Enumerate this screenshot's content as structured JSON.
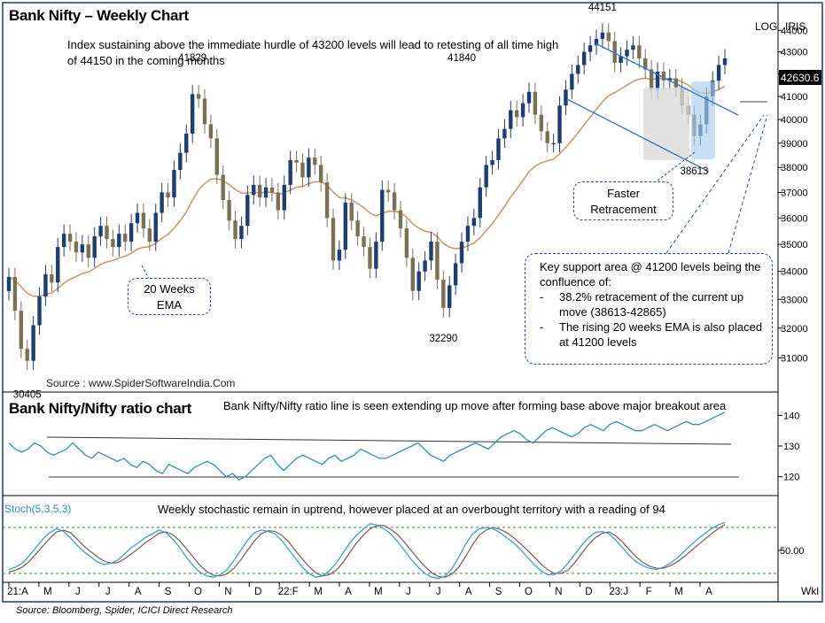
{
  "main_panel": {
    "title": "Bank Nifty – Weekly Chart",
    "scale_labels": [
      "LOG",
      "IRIS"
    ],
    "commentary": "Index sustaining above the immediate hurdle of 43200 levels will lead to retesting of all time high of 44150 in the coming months",
    "watermark": "Source : www.SpiderSoftwareIndia.Com",
    "last_price": "42630.6",
    "ema_callout": [
      "20 Weeks",
      "EMA"
    ],
    "faster_callout": [
      "Faster",
      "Retracement"
    ],
    "support_box": {
      "heading": "Key support area @ 41200 levels being the confluence of:",
      "bullets": [
        "38.2% retracement of the current up move (38613-42865)",
        "The rising 20 weeks EMA is also placed at 41200 levels"
      ]
    },
    "y_ticks": [
      "44000",
      "43000",
      "42000",
      "41000",
      "40000",
      "39000",
      "38000",
      "37000",
      "36000",
      "35000",
      "34000",
      "33000",
      "32000",
      "31000"
    ]
  },
  "ratio_panel": {
    "title": "Bank Nifty/Nifty ratio chart",
    "commentary": "Bank Nifty/Nifty ratio line is seen extending up move after forming base above major breakout area",
    "y_ticks": [
      "140",
      "130",
      "120"
    ]
  },
  "stoch_panel": {
    "label": "Stoch(5,3,5,3)",
    "commentary": "Weekly stochastic remain in uptrend, however placed at an overbought territory with a reading of 94",
    "y_ticks": [
      "50.00"
    ]
  },
  "x_axis": {
    "labels": [
      "21:A",
      "M",
      "J",
      "J",
      "A",
      "S",
      "O",
      "N",
      "D",
      "22:F",
      "M",
      "A",
      "M",
      "J",
      "J",
      "A",
      "S",
      "O",
      "N",
      "D",
      "23:J",
      "F",
      "M",
      "A"
    ],
    "interval": "Wkl"
  },
  "footer": "Source: Bloomberg, Spider, ICICI Direct Research",
  "colors": {
    "bull": "#1f3d6e",
    "bear": "#7a7055",
    "ema": "#c8946a",
    "ratio": "#2f8fb0",
    "stoch_k": "#3aa0c8",
    "stoch_d": "#7a5a4a",
    "channel": "#3a78c8",
    "border": "#1a3a7a"
  },
  "chart_data": [
    {
      "type": "candlestick",
      "title": "Bank Nifty – Weekly Chart",
      "scale": "log",
      "ylim": [
        30400,
        44600
      ],
      "x_range": [
        "2021-04",
        "2023-04"
      ],
      "annotations": [
        {
          "label": "30405",
          "value": 30405
        },
        {
          "label": "41829",
          "value": 41829
        },
        {
          "label": "32290",
          "value": 32290
        },
        {
          "label": "41840",
          "value": 41840
        },
        {
          "label": "44151",
          "value": 44151
        },
        {
          "label": "38613",
          "value": 38613
        }
      ],
      "last": 42630.6,
      "closes": [
        33800,
        32600,
        31300,
        30900,
        32100,
        33100,
        33900,
        33600,
        34900,
        35400,
        35100,
        34700,
        35000,
        34500,
        35300,
        35700,
        35200,
        34900,
        35400,
        35100,
        35800,
        36200,
        35600,
        35100,
        36200,
        37000,
        36800,
        37900,
        38600,
        39400,
        41100,
        40900,
        39800,
        39200,
        37700,
        36700,
        35900,
        35200,
        35700,
        36900,
        37300,
        36800,
        37200,
        37000,
        36300,
        37300,
        38300,
        38200,
        37600,
        38400,
        38100,
        37400,
        36000,
        34400,
        34800,
        36600,
        35900,
        35300,
        34900,
        34100,
        35100,
        37100,
        37000,
        36300,
        35600,
        34500,
        33300,
        34000,
        34400,
        35100,
        33700,
        32700,
        33500,
        34300,
        35100,
        35700,
        36000,
        37200,
        38100,
        38300,
        39200,
        39600,
        40400,
        40100,
        40700,
        41200,
        40200,
        39500,
        39000,
        39000,
        40600,
        41300,
        42000,
        42400,
        43000,
        43300,
        43600,
        43900,
        43500,
        42500,
        42800,
        43100,
        43300,
        42700,
        42200,
        41300,
        42100,
        41700,
        41800,
        41400,
        40600,
        40200,
        39300,
        39800,
        41000,
        41700,
        42400,
        42700
      ]
    },
    {
      "type": "line",
      "title": "Bank Nifty/Nifty ratio chart",
      "ylim": [
        115,
        145
      ],
      "y_ticks": [
        120,
        130,
        140
      ],
      "series": [
        {
          "name": "",
          "values": [
            131,
            129,
            128,
            129,
            131,
            130,
            128,
            127,
            128,
            129,
            131,
            129,
            127,
            126,
            128,
            127,
            126,
            125,
            126,
            124,
            123,
            125,
            124,
            122,
            121,
            124,
            123,
            122,
            121,
            123,
            124,
            125,
            124,
            122,
            120,
            121,
            119,
            120,
            122,
            124,
            126,
            127,
            124,
            122,
            124,
            126,
            127,
            126,
            125,
            124,
            126,
            127,
            125,
            126,
            127,
            129,
            128,
            127,
            126,
            126,
            127,
            128,
            129,
            130,
            131,
            129,
            127,
            126,
            125,
            127,
            128,
            129,
            130,
            131,
            130,
            129,
            131,
            133,
            134,
            135,
            134,
            132,
            131,
            133,
            135,
            136,
            135,
            134,
            133,
            134,
            136,
            137,
            136,
            135,
            137,
            138,
            137,
            136,
            135,
            135,
            136,
            137,
            136,
            135,
            136,
            137,
            138,
            137,
            137,
            138,
            139,
            140,
            141
          ]
        }
      ]
    },
    {
      "type": "line",
      "title": "Stoch(5,3,5,3)",
      "ylim": [
        0,
        100
      ],
      "reference_lines": [
        20,
        80
      ],
      "series": [
        {
          "name": "",
          "values": [
            20,
            24,
            30,
            42,
            55,
            68,
            78,
            84,
            80,
            70,
            58,
            48,
            40,
            32,
            28,
            30,
            35,
            45,
            55,
            62,
            70,
            76,
            82,
            78,
            68,
            55,
            40,
            26,
            16,
            10,
            8,
            12,
            20,
            34,
            50,
            66,
            78,
            82,
            80,
            76,
            66,
            52,
            38,
            24,
            14,
            8,
            10,
            18,
            30,
            46,
            62,
            74,
            84,
            92,
            90,
            84,
            76,
            64,
            50,
            36,
            24,
            14,
            8,
            6,
            10,
            22,
            40,
            60,
            76,
            84,
            86,
            84,
            78,
            70,
            62,
            52,
            40,
            28,
            18,
            12,
            12,
            18,
            30,
            44,
            58,
            70,
            78,
            80,
            76,
            66,
            54,
            42,
            32,
            26,
            22,
            20,
            24,
            30,
            38,
            48,
            58,
            68,
            76,
            84,
            90,
            94
          ]
        },
        {
          "name": "",
          "values": [
            16,
            19,
            24,
            33,
            45,
            57,
            69,
            79,
            82,
            78,
            68,
            57,
            48,
            40,
            33,
            30,
            31,
            37,
            45,
            53,
            62,
            69,
            77,
            79,
            75,
            66,
            53,
            40,
            27,
            17,
            11,
            10,
            13,
            22,
            35,
            50,
            65,
            76,
            81,
            80,
            74,
            64,
            50,
            37,
            25,
            15,
            10,
            12,
            19,
            31,
            47,
            62,
            74,
            84,
            89,
            89,
            83,
            75,
            63,
            50,
            37,
            25,
            15,
            9,
            8,
            13,
            24,
            41,
            59,
            74,
            82,
            86,
            83,
            78,
            70,
            61,
            51,
            40,
            29,
            20,
            14,
            14,
            19,
            31,
            45,
            59,
            70,
            77,
            79,
            73,
            63,
            51,
            40,
            31,
            25,
            22,
            22,
            26,
            32,
            40,
            49,
            58,
            67,
            76,
            84,
            91
          ]
        }
      ]
    }
  ]
}
